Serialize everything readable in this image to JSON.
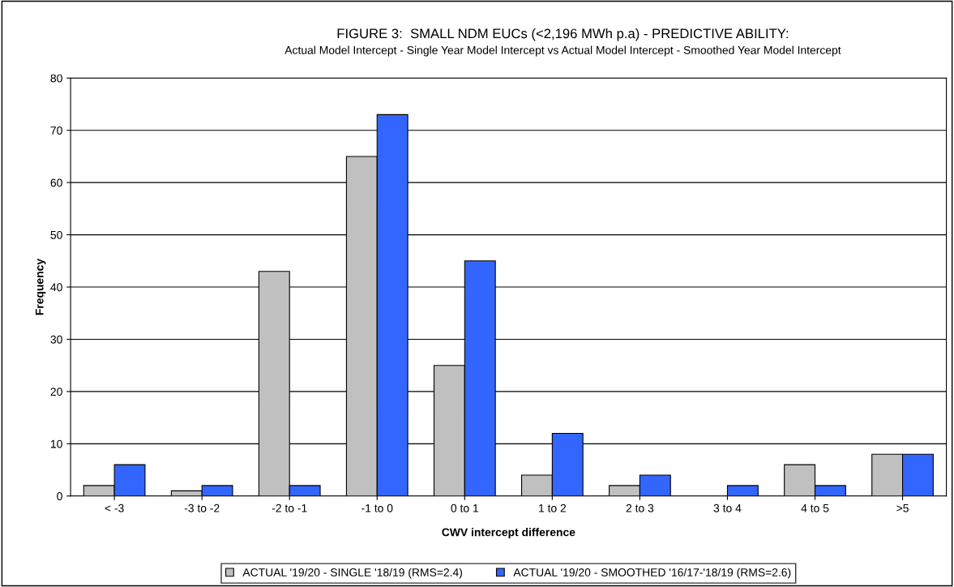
{
  "chart_data": {
    "type": "bar",
    "title": "FIGURE 3:  SMALL NDM EUCs (<2,196 MWh p.a) - PREDICTIVE ABILITY:",
    "subtitle": "Actual Model Intercept - Single Year Model Intercept vs Actual Model Intercept - Smoothed Year Model Intercept",
    "xlabel": "CWV intercept difference",
    "ylabel": "Frequency",
    "categories": [
      "< -3",
      "-3 to -2",
      "-2 to -1",
      "-1 to 0",
      "0 to 1",
      "1 to 2",
      "2 to 3",
      "3 to 4",
      "4 to 5",
      ">5"
    ],
    "series": [
      {
        "name": "ACTUAL '19/20 - SINGLE '18/19 (RMS=2.4)",
        "color": "#c0c0c0",
        "values": [
          2,
          1,
          43,
          65,
          25,
          4,
          2,
          null,
          6,
          8
        ]
      },
      {
        "name": "ACTUAL '19/20 - SMOOTHED '16/17-'18/19 (RMS=2.6)",
        "color": "#3366ff",
        "values": [
          6,
          2,
          2,
          73,
          45,
          12,
          4,
          2,
          2,
          8
        ]
      }
    ],
    "ylim": [
      0,
      80
    ],
    "yticks": [
      0,
      10,
      20,
      30,
      40,
      50,
      60,
      70,
      80
    ],
    "grid": "y",
    "legend": "bottom"
  }
}
